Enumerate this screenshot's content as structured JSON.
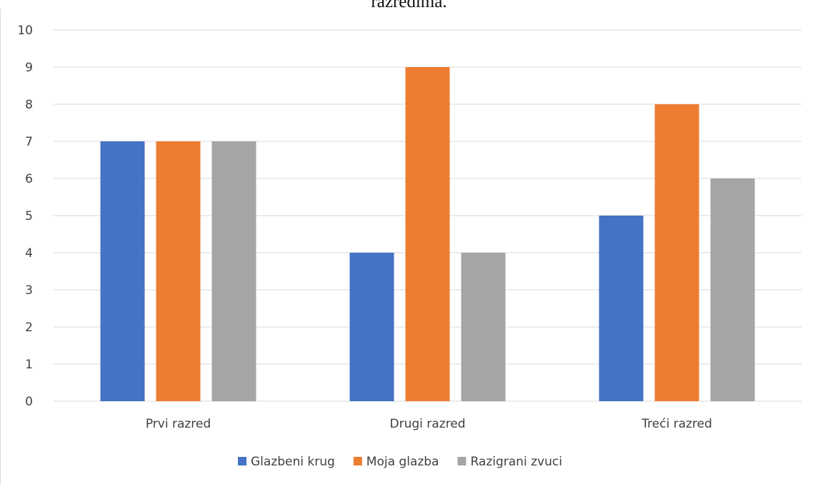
{
  "caption_fragment": "razredima.",
  "chart_data": {
    "type": "bar",
    "title": "",
    "xlabel": "",
    "ylabel": "",
    "categories": [
      "Prvi razred",
      "Drugi razred",
      "Treći razred"
    ],
    "series": [
      {
        "name": "Glazbeni krug",
        "values": [
          7,
          4,
          5
        ],
        "color": "#4472c4"
      },
      {
        "name": "Moja glazba",
        "values": [
          7,
          9,
          8
        ],
        "color": "#ed7d31"
      },
      {
        "name": "Razigrani zvuci",
        "values": [
          7,
          4,
          6
        ],
        "color": "#a5a5a5"
      }
    ],
    "ylim": [
      0,
      10
    ],
    "yticks": [
      "0",
      "1",
      "2",
      "3",
      "4",
      "5",
      "6",
      "7",
      "8",
      "9",
      "10"
    ],
    "grid": true,
    "legend_position": "bottom",
    "gridline_color": "#d9d9d9",
    "text_color": "#404040"
  }
}
